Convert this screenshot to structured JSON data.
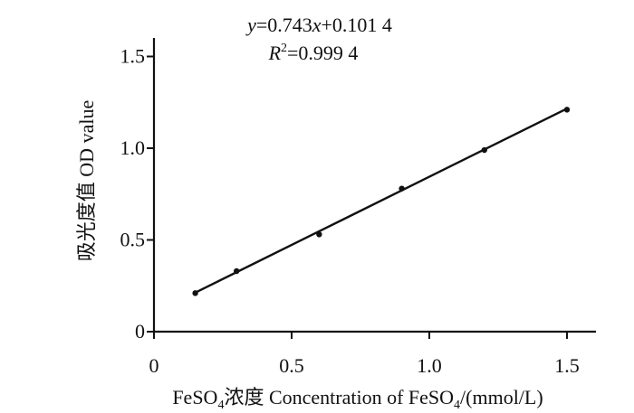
{
  "chart_data": {
    "type": "scatter",
    "x": [
      0.15,
      0.3,
      0.6,
      0.9,
      1.2,
      1.5
    ],
    "y": [
      0.21,
      0.33,
      0.53,
      0.78,
      0.99,
      1.21
    ],
    "fit_line": {
      "slope": 0.743,
      "intercept": 0.1014,
      "x_range": [
        0.15,
        1.5
      ]
    },
    "equation": {
      "line1_y": "y",
      "line1_rest_a": "=0.743",
      "line1_x": "x",
      "line1_rest_b": "+0.101 4",
      "line2_r": "R",
      "line2_sup": "2",
      "line2_rest": "=0.999 4"
    },
    "xlabel": {
      "part1": "FeSO",
      "sub1": "4",
      "part2": "浓度 Concentration of FeSO",
      "sub2": "4",
      "part3": "/(mmol/L)"
    },
    "ylabel": "吸光度值  OD value",
    "xlim": [
      0,
      1.6
    ],
    "ylim": [
      0,
      1.6
    ],
    "xticks": [
      0,
      0.5,
      1.0,
      1.5
    ],
    "xtick_labels": [
      "0",
      "0.5",
      "1.0",
      "1.5"
    ],
    "yticks": [
      0,
      0.5,
      1.0,
      1.5
    ],
    "ytick_labels": [
      "0",
      "0.5",
      "1.0",
      "1.5"
    ],
    "grid": false,
    "colors": {
      "axis": "#111111",
      "marker": "#111111",
      "line": "#111111"
    }
  }
}
